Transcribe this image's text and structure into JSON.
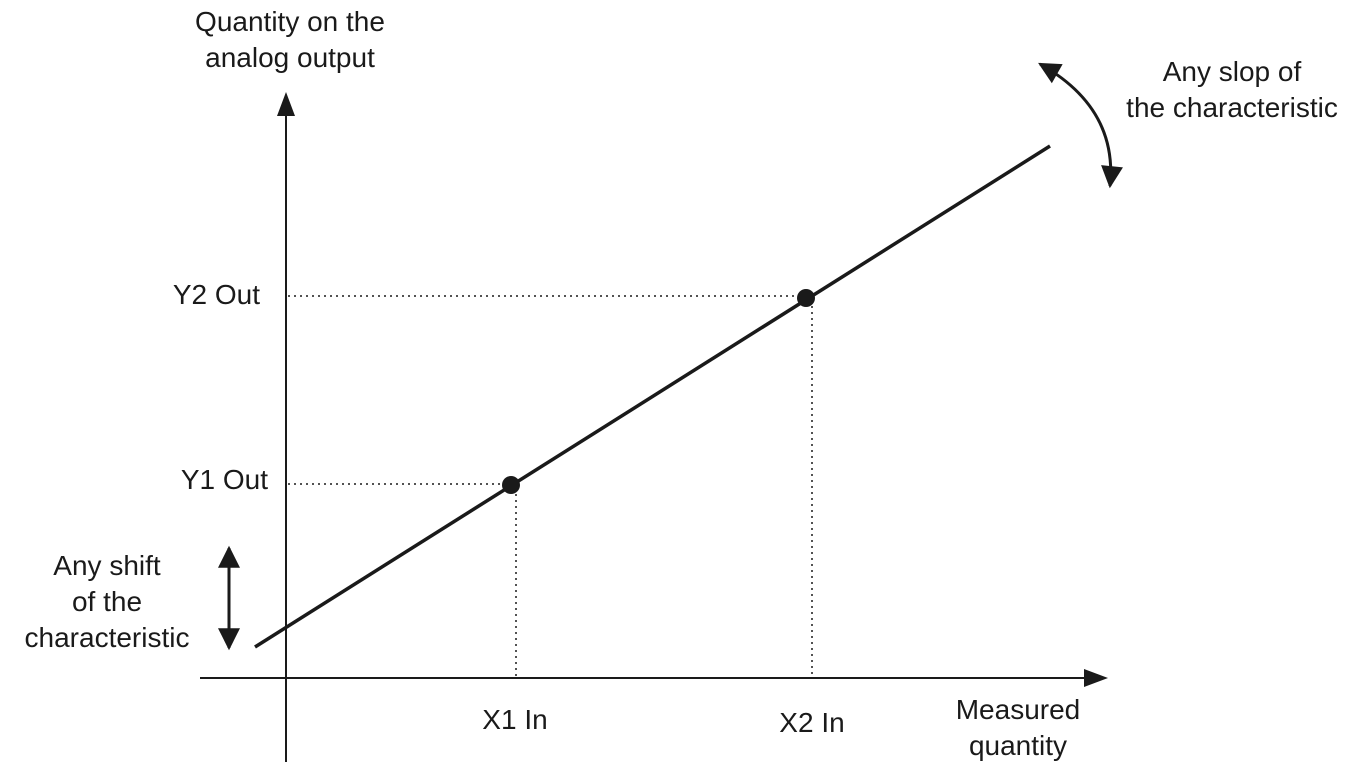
{
  "y_axis": {
    "label_line1": "Quantity on the",
    "label_line2": "analog output"
  },
  "x_axis": {
    "label_line1": "Measured",
    "label_line2": "quantity"
  },
  "points": {
    "y2_label": "Y2 Out",
    "y1_label": "Y1 Out",
    "x1_label": "X1 In",
    "x2_label": "X2 In"
  },
  "annotations": {
    "slope_line1": "Any slop of",
    "slope_line2": "the characteristic",
    "shift_line1": "Any shift",
    "shift_line2": "of the",
    "shift_line3": "characteristic"
  },
  "colors": {
    "ink": "#1a1a1a"
  }
}
